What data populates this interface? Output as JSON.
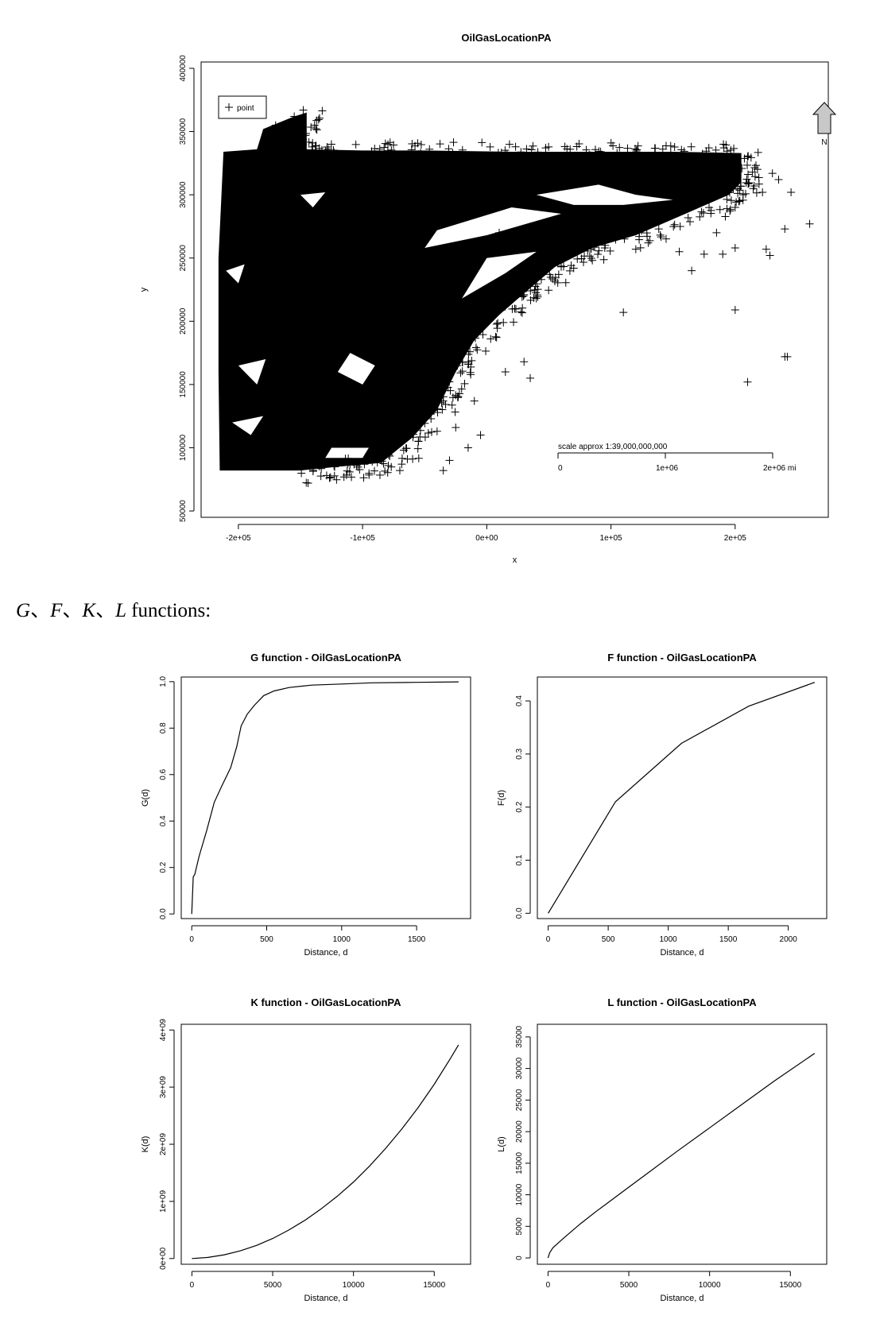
{
  "section_heading": {
    "g": "G",
    "sep1": "、",
    "f": "F",
    "sep2": "、",
    "k": "K",
    "sep3": "、",
    "l": "L",
    "rest": " functions:"
  },
  "chart_data": [
    {
      "id": "main",
      "type": "scatter",
      "title": "OilGasLocationPA",
      "xlabel": "x",
      "ylabel": "y",
      "xlim": [
        -230000,
        275000
      ],
      "ylim": [
        45000,
        405000
      ],
      "xticks": [
        -200000,
        -100000,
        0,
        100000,
        200000
      ],
      "xtick_labels": [
        "-2e+05",
        "-1e+05",
        "0e+00",
        "1e+05",
        "2e+05"
      ],
      "yticks": [
        50000,
        100000,
        150000,
        200000,
        250000,
        300000,
        350000,
        400000
      ],
      "ytick_labels": [
        "50000",
        "100000",
        "150000",
        "200000",
        "250000",
        "300000",
        "350000",
        "400000"
      ],
      "legend": {
        "position": "top-left",
        "marker": "+",
        "label": "point"
      },
      "north_arrow": {
        "position": "top-right",
        "label": "N"
      },
      "scale_bar": {
        "label": "scale approx 1:39,000,000,000",
        "ticks": [
          "0",
          "1e+06",
          "2e+06 mi"
        ]
      },
      "grid": false,
      "marker": "+",
      "point_density": "very dense cluster in the west (x -215000 to -50000, y 80000 to 335000) thinning to sparse points eastward",
      "sample_points": [
        [
          -170000,
          355000
        ],
        [
          -155000,
          362000
        ],
        [
          -148000,
          340000
        ],
        [
          -5000,
          110000
        ],
        [
          -15000,
          100000
        ],
        [
          -25000,
          116000
        ],
        [
          -10000,
          137000
        ],
        [
          -30000,
          90000
        ],
        [
          -35000,
          82000
        ],
        [
          15000,
          160000
        ],
        [
          30000,
          168000
        ],
        [
          35000,
          155000
        ],
        [
          -15000,
          166000
        ],
        [
          -28000,
          160000
        ],
        [
          -40000,
          113000
        ],
        [
          -55000,
          105000
        ],
        [
          -70000,
          82000
        ],
        [
          110000,
          207000
        ],
        [
          200000,
          209000
        ],
        [
          210000,
          152000
        ],
        [
          240000,
          172000
        ],
        [
          242000,
          172000
        ],
        [
          260000,
          277000
        ],
        [
          240000,
          273000
        ],
        [
          225000,
          257000
        ],
        [
          228000,
          252000
        ],
        [
          245000,
          302000
        ],
        [
          235000,
          312000
        ],
        [
          230000,
          317000
        ],
        [
          222000,
          302000
        ],
        [
          210000,
          330000
        ],
        [
          200000,
          290000
        ],
        [
          200000,
          258000
        ],
        [
          185000,
          270000
        ],
        [
          165000,
          240000
        ],
        [
          175000,
          253000
        ],
        [
          190000,
          253000
        ],
        [
          155000,
          255000
        ],
        [
          130000,
          262000
        ],
        [
          120000,
          257000
        ],
        [
          100000,
          275000
        ],
        [
          95000,
          258000
        ],
        [
          30000,
          221000
        ],
        [
          40000,
          238000
        ],
        [
          70000,
          242000
        ],
        [
          60000,
          282000
        ],
        [
          45000,
          292000
        ],
        [
          10000,
          270000
        ]
      ]
    },
    {
      "id": "G",
      "type": "line",
      "title": "G function - OilGasLocationPA",
      "xlabel": "Distance, d",
      "ylabel": "G(d)",
      "xlim": [
        -70,
        1860
      ],
      "ylim": [
        -0.02,
        1.02
      ],
      "xticks": [
        0,
        500,
        1000,
        1500
      ],
      "yticks": [
        0.0,
        0.2,
        0.4,
        0.6,
        0.8,
        1.0
      ],
      "ytick_labels": [
        "0.0",
        "0.2",
        "0.4",
        "0.6",
        "0.8",
        "1.0"
      ],
      "x": [
        0,
        10,
        20,
        50,
        100,
        150,
        200,
        260,
        300,
        330,
        370,
        420,
        480,
        550,
        650,
        800,
        1000,
        1200,
        1500,
        1780
      ],
      "y": [
        0.0,
        0.16,
        0.17,
        0.25,
        0.36,
        0.48,
        0.55,
        0.63,
        0.72,
        0.81,
        0.86,
        0.9,
        0.94,
        0.96,
        0.975,
        0.985,
        0.99,
        0.995,
        0.997,
        0.999
      ]
    },
    {
      "id": "F",
      "type": "line",
      "title": "F function - OilGasLocationPA",
      "xlabel": "Distance, d",
      "ylabel": "F(d)",
      "xlim": [
        -90,
        2320
      ],
      "ylim": [
        -0.01,
        0.445
      ],
      "xticks": [
        0,
        500,
        1000,
        1500,
        2000
      ],
      "yticks": [
        0.0,
        0.1,
        0.2,
        0.3,
        0.4
      ],
      "ytick_labels": [
        "0.0",
        "0.1",
        "0.2",
        "0.3",
        "0.4"
      ],
      "x": [
        0,
        560,
        1110,
        1670,
        2220
      ],
      "y": [
        0.0,
        0.21,
        0.32,
        0.39,
        0.435
      ]
    },
    {
      "id": "K",
      "type": "line",
      "title": "K function - OilGasLocationPA",
      "xlabel": "Distance, d",
      "ylabel": "K(d)",
      "xlim": [
        -660,
        17250
      ],
      "ylim": [
        -100000000.0,
        4100000000.0
      ],
      "xticks": [
        0,
        5000,
        10000,
        15000
      ],
      "yticks": [
        0,
        1000000000,
        2000000000,
        3000000000,
        4000000000
      ],
      "ytick_labels": [
        "0e+00",
        "1e+09",
        "2e+09",
        "3e+09",
        "4e+09"
      ],
      "x": [
        0,
        1000,
        2000,
        3000,
        4000,
        5000,
        6000,
        7000,
        8000,
        9000,
        10000,
        11000,
        12000,
        13000,
        14000,
        15000,
        16000,
        16500
      ],
      "y": [
        0,
        20000000.0,
        65000000.0,
        135000000.0,
        230000000.0,
        350000000.0,
        500000000.0,
        670000000.0,
        870000000.0,
        1090000000.0,
        1340000000.0,
        1620000000.0,
        1930000000.0,
        2270000000.0,
        2640000000.0,
        3050000000.0,
        3500000000.0,
        3740000000.0
      ]
    },
    {
      "id": "L",
      "type": "line",
      "title": "L function - OilGasLocationPA",
      "xlabel": "Distance, d",
      "ylabel": "L(d)",
      "xlim": [
        -660,
        17250
      ],
      "ylim": [
        -1000,
        37000
      ],
      "xticks": [
        0,
        5000,
        10000,
        15000
      ],
      "yticks": [
        0,
        5000,
        10000,
        15000,
        20000,
        25000,
        30000,
        35000
      ],
      "ytick_labels": [
        "0",
        "5000",
        "10000",
        "15000",
        "20000",
        "25000",
        "30000",
        "35000"
      ],
      "x": [
        0,
        100,
        300,
        600,
        1000,
        2000,
        3000,
        4000,
        5000,
        6000,
        8000,
        10000,
        12000,
        14000,
        16500
      ],
      "y": [
        0,
        800,
        1600,
        2300,
        3200,
        5400,
        7400,
        9300,
        11200,
        13100,
        16900,
        20600,
        24300,
        28000,
        32400
      ]
    }
  ]
}
